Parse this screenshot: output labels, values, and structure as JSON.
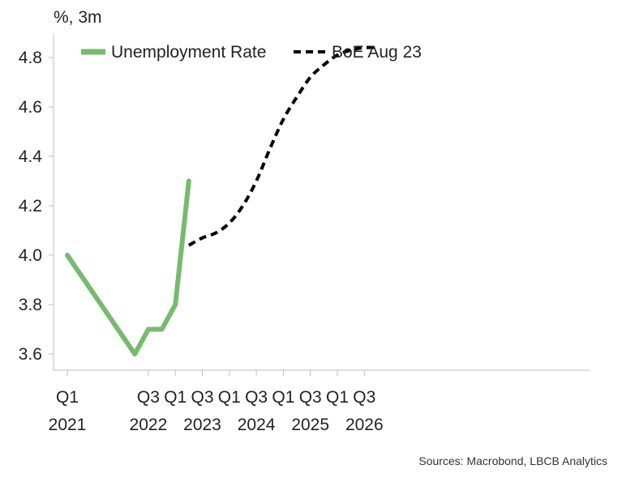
{
  "chart_data": {
    "type": "line",
    "unit_label": "%, 3m",
    "ylim": [
      3.55,
      4.9
    ],
    "y_ticks": [
      3.6,
      3.8,
      4.0,
      4.2,
      4.4,
      4.6,
      4.8
    ],
    "y_tick_labels": [
      "3.6",
      "3.8",
      "4.0",
      "4.2",
      "4.4",
      "4.6",
      "4.8"
    ],
    "x_ticks": [
      {
        "quarter": "Q1",
        "year": "2021",
        "x": "2021-Q1"
      },
      {
        "quarter": "Q3",
        "year": "2022",
        "x": "2022-Q3"
      },
      {
        "quarter": "Q1",
        "year": "",
        "x": "2023-Q1"
      },
      {
        "quarter": "Q3",
        "year": "2023",
        "x": "2023-Q3"
      },
      {
        "quarter": "Q1",
        "year": "",
        "x": "2024-Q1"
      },
      {
        "quarter": "Q3",
        "year": "2024",
        "x": "2024-Q3"
      },
      {
        "quarter": "Q1",
        "year": "",
        "x": "2025-Q1"
      },
      {
        "quarter": "Q3",
        "year": "2025",
        "x": "2025-Q3"
      },
      {
        "quarter": "Q1",
        "year": "",
        "x": "2026-Q1"
      },
      {
        "quarter": "Q3",
        "year": "2026",
        "x": "2026-Q3"
      }
    ],
    "series": [
      {
        "name": "Unemployment Rate",
        "color": "#77bb6e",
        "style": "solid",
        "points": [
          {
            "x": "2021-Q1",
            "y": 4.0
          },
          {
            "x": "2022-Q2",
            "y": 3.6
          },
          {
            "x": "2022-Q3",
            "y": 3.7
          },
          {
            "x": "2022-Q4",
            "y": 3.7
          },
          {
            "x": "2023-Q1",
            "y": 3.8
          },
          {
            "x": "2023-Q2",
            "y": 4.3
          }
        ]
      },
      {
        "name": "BoE Aug 23",
        "color": "#000000",
        "style": "dashed",
        "points": [
          {
            "x": "2023-Q2",
            "y": 4.04
          },
          {
            "x": "2023-Q3",
            "y": 4.07
          },
          {
            "x": "2023-Q4",
            "y": 4.09
          },
          {
            "x": "2024-Q1",
            "y": 4.13
          },
          {
            "x": "2024-Q2",
            "y": 4.2
          },
          {
            "x": "2024-Q3",
            "y": 4.3
          },
          {
            "x": "2024-Q4",
            "y": 4.43
          },
          {
            "x": "2025-Q1",
            "y": 4.55
          },
          {
            "x": "2025-Q2",
            "y": 4.64
          },
          {
            "x": "2025-Q3",
            "y": 4.72
          },
          {
            "x": "2025-Q4",
            "y": 4.77
          },
          {
            "x": "2026-Q1",
            "y": 4.81
          },
          {
            "x": "2026-Q2",
            "y": 4.83
          },
          {
            "x": "2026-Q3",
            "y": 4.84
          },
          {
            "x": "2026-Q4",
            "y": 4.84
          }
        ]
      }
    ],
    "legend_position": "top",
    "grid": false
  },
  "source_note": "Sources: Macrobond, LBCB Analytics"
}
